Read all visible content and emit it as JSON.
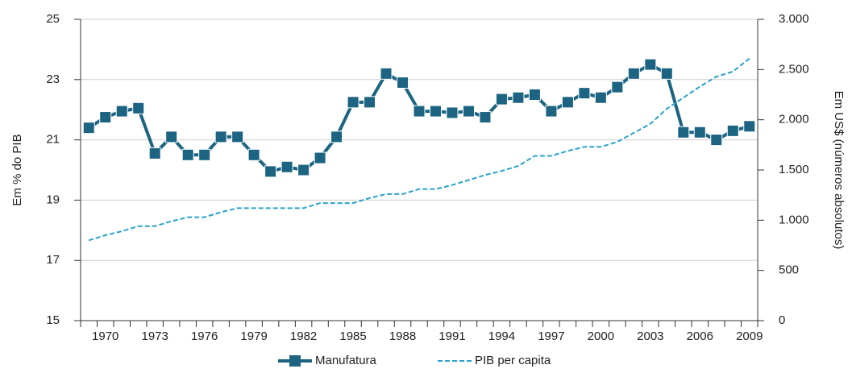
{
  "chart_data": {
    "type": "line",
    "categories": [
      null,
      "1970",
      null,
      null,
      "1973",
      null,
      null,
      "1976",
      null,
      null,
      "1979",
      null,
      null,
      "1982",
      null,
      null,
      "1985",
      null,
      null,
      "1988",
      null,
      null,
      "1991",
      null,
      null,
      "1994",
      null,
      null,
      "1997",
      null,
      null,
      "2000",
      null,
      null,
      "2003",
      null,
      null,
      "2006",
      null,
      null,
      "2009"
    ],
    "y_label": "Em % do PIB",
    "y2_label": "Em US$ (números absolutos)",
    "ylim": [
      15,
      25
    ],
    "yticks": [
      15,
      17,
      19,
      21,
      23,
      25
    ],
    "y2lim": [
      0,
      3000
    ],
    "y2ticks": [
      0,
      {
        "value": 500,
        "label": "500"
      },
      {
        "value": 1000,
        "label": "1.000"
      },
      {
        "value": 1500,
        "label": "1.500"
      },
      {
        "value": 2000,
        "label": "2.000"
      },
      {
        "value": 2500,
        "label": "2.500"
      },
      {
        "value": 3000,
        "label": "3.000"
      }
    ],
    "grid": true,
    "series": [
      {
        "name": "Manufatura",
        "color": "#1c6482",
        "marker": "square",
        "values": [
          21.4,
          21.75,
          21.95,
          22.05,
          20.55,
          21.1,
          20.5,
          20.5,
          21.1,
          21.1,
          20.5,
          19.95,
          20.1,
          20.0,
          20.4,
          21.1,
          22.25,
          22.25,
          23.2,
          22.9,
          21.95,
          21.95,
          21.9,
          21.95,
          21.75,
          22.35,
          22.4,
          22.5,
          21.95,
          22.25,
          22.55,
          22.4,
          22.75,
          23.2,
          23.5,
          23.2,
          21.25,
          21.25,
          21.0,
          21.3,
          21.45
        ]
      },
      {
        "name": "PIB per capita",
        "color": "#2aa3c8",
        "axis": "y2",
        "dashed": true,
        "values": [
          800,
          850,
          890,
          940,
          940,
          990,
          1030,
          1030,
          1080,
          1120,
          1120,
          1120,
          1120,
          1120,
          1170,
          1170,
          1170,
          1220,
          1260,
          1260,
          1310,
          1310,
          1350,
          1400,
          1450,
          1490,
          1540,
          1640,
          1640,
          1690,
          1730,
          1730,
          1780,
          1870,
          1960,
          2110,
          2220,
          2330,
          2430,
          2480,
          2610
        ]
      }
    ]
  }
}
